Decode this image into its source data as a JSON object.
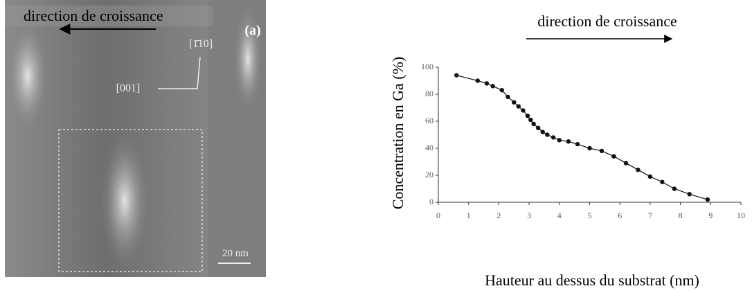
{
  "figure_a": {
    "top_label": "direction de croissance",
    "panel_label": "(a)",
    "direction_up": "[1̄10]",
    "direction_left": "[001]",
    "scale_bar": "20 nm"
  },
  "chart_data": {
    "type": "line",
    "header": "direction de croissance",
    "x_label": "Hauteur au dessus du substrat (nm)",
    "y_label": "Concentration en Ga (%)",
    "x": [
      0.6,
      1.3,
      1.6,
      1.8,
      2.1,
      2.3,
      2.5,
      2.65,
      2.8,
      2.95,
      3.05,
      3.15,
      3.3,
      3.45,
      3.6,
      3.8,
      4.0,
      4.3,
      4.6,
      5.0,
      5.4,
      5.8,
      6.2,
      6.6,
      7.0,
      7.4,
      7.8,
      8.3,
      8.9
    ],
    "series": [
      {
        "color": "#111111",
        "values": [
          94,
          90,
          88,
          86,
          83,
          78,
          74,
          71,
          68,
          64,
          61,
          58,
          55,
          52,
          50,
          48,
          46,
          45,
          43,
          40,
          38,
          34,
          29,
          24,
          19,
          15,
          10,
          6,
          2
        ]
      }
    ],
    "xlim": [
      0,
      10
    ],
    "ylim": [
      0,
      100
    ],
    "xticks": [
      0,
      1,
      2,
      3,
      4,
      5,
      6,
      7,
      8,
      9,
      10
    ],
    "yticks": [
      0,
      20,
      40,
      60,
      80,
      100
    ]
  }
}
